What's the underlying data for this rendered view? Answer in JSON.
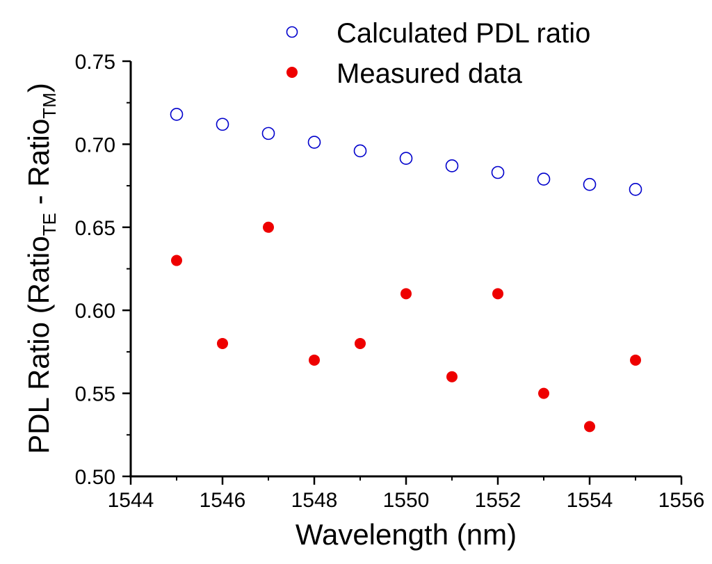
{
  "chart_data": {
    "type": "scatter",
    "title": "",
    "xlabel": "Wavelength (nm)",
    "ylabel": {
      "prefix": "PDL Ratio (Ratio",
      "sub1": "TE",
      "mid": " - Ratio",
      "sub2": "TM",
      "suffix": ")"
    },
    "xlim": [
      1544,
      1556
    ],
    "ylim": [
      0.5,
      0.75
    ],
    "xticks": [
      1544,
      1546,
      1548,
      1550,
      1552,
      1554,
      1556
    ],
    "xtick_labels": [
      "1544",
      "1546",
      "1548",
      "1550",
      "1552",
      "1554",
      "1556"
    ],
    "yticks": [
      0.5,
      0.55,
      0.6,
      0.65,
      0.7,
      0.75
    ],
    "ytick_labels": [
      "0.50",
      "0.55",
      "0.60",
      "0.65",
      "0.70",
      "0.75"
    ],
    "grid": false,
    "legend_position": "top-right",
    "series": [
      {
        "name": "Calculated PDL ratio",
        "marker": "open-circle",
        "color": "#0000cc",
        "x": [
          1545,
          1546,
          1547,
          1548,
          1549,
          1550,
          1551,
          1552,
          1553,
          1554,
          1555
        ],
        "y": [
          0.718,
          0.712,
          0.7065,
          0.7012,
          0.696,
          0.6915,
          0.687,
          0.683,
          0.679,
          0.6758,
          0.6728
        ]
      },
      {
        "name": "Measured data",
        "marker": "filled-circle",
        "color": "#ee0000",
        "x": [
          1545,
          1546,
          1547,
          1548,
          1549,
          1550,
          1551,
          1552,
          1553,
          1554,
          1555
        ],
        "y": [
          0.63,
          0.58,
          0.65,
          0.57,
          0.58,
          0.61,
          0.56,
          0.61,
          0.55,
          0.53,
          0.57
        ]
      }
    ]
  }
}
